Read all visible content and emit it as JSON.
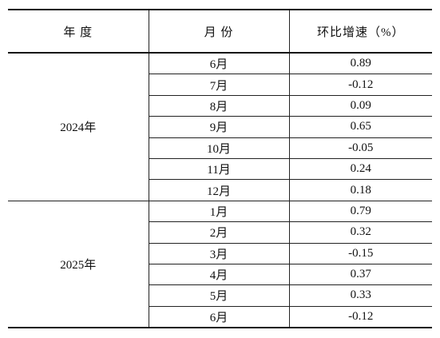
{
  "table": {
    "headers": [
      "年 度",
      "月 份",
      "环比增速（%）"
    ],
    "groups": [
      {
        "year": "2024年",
        "rows": [
          [
            "6月",
            "0.89"
          ],
          [
            "7月",
            "-0.12"
          ],
          [
            "8月",
            "0.09"
          ],
          [
            "9月",
            "0.65"
          ],
          [
            "10月",
            "-0.05"
          ],
          [
            "11月",
            "0.24"
          ],
          [
            "12月",
            "0.18"
          ]
        ]
      },
      {
        "year": "2025年",
        "rows": [
          [
            "1月",
            "0.79"
          ],
          [
            "2月",
            "0.32"
          ],
          [
            "3月",
            "-0.15"
          ],
          [
            "4月",
            "0.37"
          ],
          [
            "5月",
            "0.33"
          ],
          [
            "6月",
            "-0.12"
          ]
        ]
      }
    ]
  }
}
